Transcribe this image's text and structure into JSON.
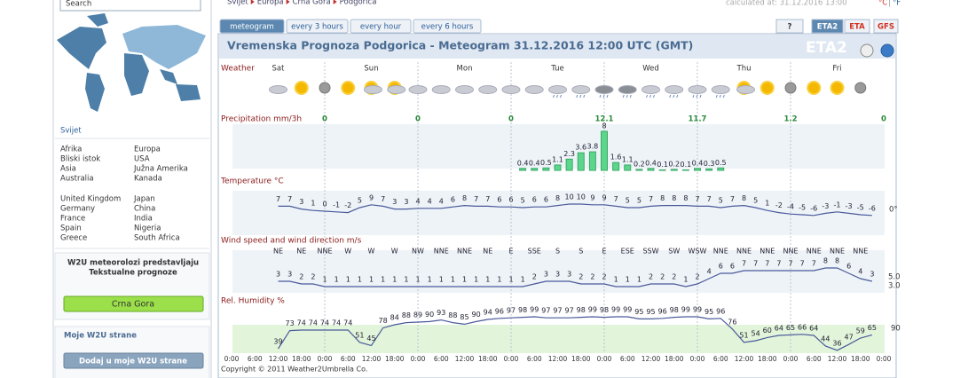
{
  "header": {
    "breadcrumb": [
      "Svijet",
      "Europa",
      "Crna Gora",
      "Podgorica"
    ],
    "calculated": "calculated at: 31.12.2016 13:00",
    "units": [
      "°C",
      "°F"
    ]
  },
  "sidebar": {
    "search": "Search",
    "section": "Svijet",
    "regions": [
      "Afrika",
      "Europa",
      "Bliski istok",
      "USA",
      "Asia",
      "Južna Amerika",
      "Australia",
      "Kanada"
    ],
    "countries": [
      "United Kingdom",
      "Japan",
      "Germany",
      "China",
      "France",
      "India",
      "Spain",
      "Nigeria",
      "Greece",
      "South Africa"
    ],
    "promo_title": [
      "W2U meteorolozi predstavljaju",
      "Tekstualne prognoze"
    ],
    "promo_button": "Crna Gora",
    "my_title": "Moje W2U strane",
    "my_button": "Dodaj u moje W2U strane"
  },
  "tabs": [
    "meteogram",
    "every 3 hours",
    "every hour",
    "every 6 hours"
  ],
  "models": [
    "?",
    "ETA2",
    "ETA",
    "GFS"
  ],
  "title": "Vremenska Prognoza Podgorica - Meteogram 31.12.2016 12:00 UTC (GMT)",
  "watermark": "ETA2",
  "meteogram": {
    "rows": [
      "Weather",
      "Precipitation mm/3h",
      "Temperature °C",
      "Wind speed and wind direction m/s",
      "Rel. Humidity %"
    ],
    "days": [
      "Sat",
      "Sun",
      "Mon",
      "Tue",
      "Wed",
      "Thu",
      "Fri"
    ],
    "precip_12h": [
      0,
      0,
      0,
      12.1,
      11.7,
      1.2,
      0
    ],
    "precip_3h": [
      0.4,
      0.4,
      0.5,
      1.1,
      2.3,
      3.6,
      3.8,
      8,
      1.6,
      1.1,
      0.2,
      0.4,
      0.1,
      0.2,
      0.1,
      0.4,
      0.3,
      0.5
    ],
    "temperature": [
      7,
      7,
      3,
      1,
      0,
      -1,
      -2,
      5,
      9,
      7,
      3,
      3,
      4,
      4,
      4,
      6,
      8,
      7,
      7,
      6,
      6,
      5,
      6,
      6,
      8,
      10,
      10,
      9,
      9,
      7,
      5,
      5,
      7,
      8,
      8,
      8,
      7,
      7,
      5,
      7,
      8,
      5,
      1,
      -2,
      -4,
      -5,
      -6,
      -3,
      -1,
      -3,
      -5,
      -6
    ],
    "temperature_axis": "0°",
    "wind_dir": [
      "NE",
      "NE",
      "NNE",
      "W",
      "W",
      "W",
      "NW",
      "NNE",
      "NNE",
      "NE",
      "E",
      "SSE",
      "S",
      "S",
      "E",
      "ESE",
      "SSW",
      "SW",
      "WSW",
      "NNE",
      "NNE",
      "NNE",
      "NNE",
      "NNE",
      "NNE",
      "NNE"
    ],
    "wind_speed": [
      3,
      3,
      2,
      2,
      1,
      1,
      1,
      1,
      1,
      1,
      1,
      1,
      1,
      1,
      1,
      1,
      1,
      1,
      1,
      1,
      1,
      1,
      2,
      3,
      3,
      3,
      2,
      2,
      2,
      1,
      1,
      1,
      2,
      2,
      2,
      1,
      2,
      4,
      6,
      6,
      7,
      7,
      7,
      7,
      7,
      7,
      7,
      8,
      8,
      6,
      4,
      3
    ],
    "wind_axis": [
      "5.0",
      "3.0"
    ],
    "humidity": [
      39,
      73,
      74,
      74,
      74,
      74,
      74,
      51,
      45,
      78,
      84,
      88,
      89,
      90,
      93,
      88,
      85,
      90,
      94,
      96,
      97,
      98,
      99,
      97,
      97,
      97,
      98,
      99,
      98,
      99,
      99,
      95,
      95,
      96,
      98,
      99,
      99,
      95,
      96,
      76,
      51,
      54,
      60,
      64,
      65,
      66,
      64,
      44,
      36,
      47,
      59,
      65
    ],
    "humidity_axis": "90",
    "time_labels": [
      "0:00",
      "6:00",
      "12:00",
      "18:00",
      "0:00",
      "6:00",
      "12:00",
      "18:00",
      "0:00",
      "6:00",
      "12:00",
      "18:00",
      "0:00",
      "6:00",
      "12:00",
      "18:00",
      "0:00",
      "6:00",
      "12:00",
      "18:00",
      "0:00",
      "6:00",
      "12:00",
      "18:00",
      "0:00",
      "6:00",
      "12:00",
      "18:00",
      "0:00"
    ]
  },
  "copyright": "Copyright © 2011 Weather2Umbrella Co."
}
